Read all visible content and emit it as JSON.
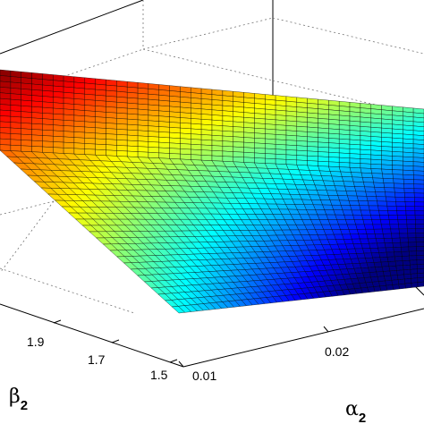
{
  "chart_data": {
    "type": "surface",
    "colormap": "jet",
    "grid": true,
    "x_axis": {
      "name": "α",
      "subscript": "2",
      "ticks": [
        "0.01",
        "0.02"
      ]
    },
    "y_axis": {
      "name": "β",
      "subscript": "2",
      "ticks": [
        "1.9",
        "1.7",
        "1.5"
      ]
    }
  }
}
